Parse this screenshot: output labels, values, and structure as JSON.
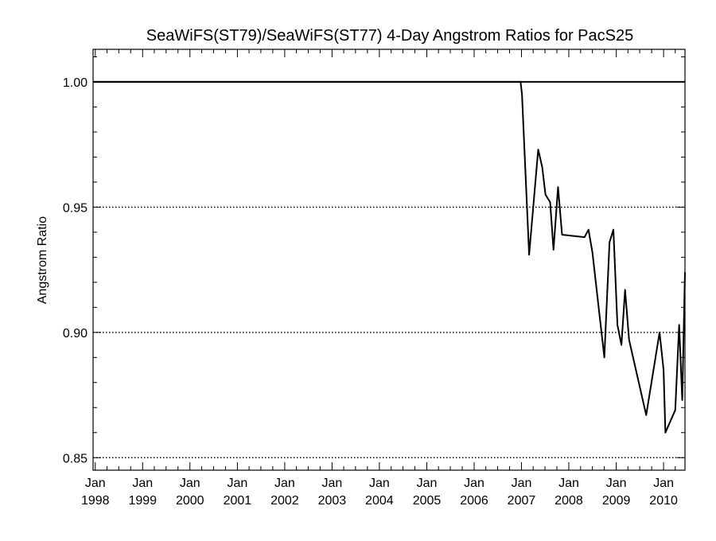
{
  "chart_data": {
    "type": "line",
    "title": "SeaWiFS(ST79)/SeaWiFS(ST77) 4-Day Angstrom Ratios for PacS25",
    "ylabel": "Angstrom Ratio",
    "xlabel": "",
    "xlim": [
      "1997-12-15",
      "2010-06-15"
    ],
    "ylim": [
      0.845,
      1.013
    ],
    "x_ticks": [
      {
        "date": "1998-01-01",
        "line1": "Jan",
        "line2": "1998"
      },
      {
        "date": "1999-01-01",
        "line1": "Jan",
        "line2": "1999"
      },
      {
        "date": "2000-01-01",
        "line1": "Jan",
        "line2": "2000"
      },
      {
        "date": "2001-01-01",
        "line1": "Jan",
        "line2": "2001"
      },
      {
        "date": "2002-01-01",
        "line1": "Jan",
        "line2": "2002"
      },
      {
        "date": "2003-01-01",
        "line1": "Jan",
        "line2": "2003"
      },
      {
        "date": "2004-01-01",
        "line1": "Jan",
        "line2": "2004"
      },
      {
        "date": "2005-01-01",
        "line1": "Jan",
        "line2": "2005"
      },
      {
        "date": "2006-01-01",
        "line1": "Jan",
        "line2": "2006"
      },
      {
        "date": "2007-01-01",
        "line1": "Jan",
        "line2": "2007"
      },
      {
        "date": "2008-01-01",
        "line1": "Jan",
        "line2": "2008"
      },
      {
        "date": "2009-01-01",
        "line1": "Jan",
        "line2": "2009"
      },
      {
        "date": "2010-01-01",
        "line1": "Jan",
        "line2": "2010"
      }
    ],
    "y_ticks": [
      {
        "value": 0.85,
        "label": "0.85"
      },
      {
        "value": 0.9,
        "label": "0.90"
      },
      {
        "value": 0.95,
        "label": "0.95"
      },
      {
        "value": 1.0,
        "label": "1.00"
      }
    ],
    "grid_y": [
      0.85,
      0.9,
      0.95
    ],
    "reference_line": 1.0,
    "series": [
      {
        "name": "",
        "points": [
          [
            "1997-12-15",
            1.0
          ],
          [
            "2006-12-25",
            1.0
          ],
          [
            "2007-01-05",
            0.995
          ],
          [
            "2007-03-01",
            0.931
          ],
          [
            "2007-05-10",
            0.973
          ],
          [
            "2007-06-10",
            0.966
          ],
          [
            "2007-07-05",
            0.955
          ],
          [
            "2007-08-10",
            0.952
          ],
          [
            "2007-09-05",
            0.933
          ],
          [
            "2007-10-10",
            0.958
          ],
          [
            "2007-11-10",
            0.939
          ],
          [
            "2008-05-01",
            0.938
          ],
          [
            "2008-06-01",
            0.941
          ],
          [
            "2008-07-01",
            0.932
          ],
          [
            "2008-10-01",
            0.89
          ],
          [
            "2008-11-10",
            0.936
          ],
          [
            "2008-12-10",
            0.941
          ],
          [
            "2009-01-10",
            0.903
          ],
          [
            "2009-02-10",
            0.895
          ],
          [
            "2009-03-10",
            0.917
          ],
          [
            "2009-04-10",
            0.897
          ],
          [
            "2009-08-20",
            0.867
          ],
          [
            "2009-12-01",
            0.9
          ],
          [
            "2010-01-01",
            0.885
          ],
          [
            "2010-01-15",
            0.86
          ],
          [
            "2010-04-01",
            0.869
          ],
          [
            "2010-05-01",
            0.903
          ],
          [
            "2010-05-25",
            0.873
          ],
          [
            "2010-06-15",
            0.924
          ]
        ]
      }
    ]
  }
}
